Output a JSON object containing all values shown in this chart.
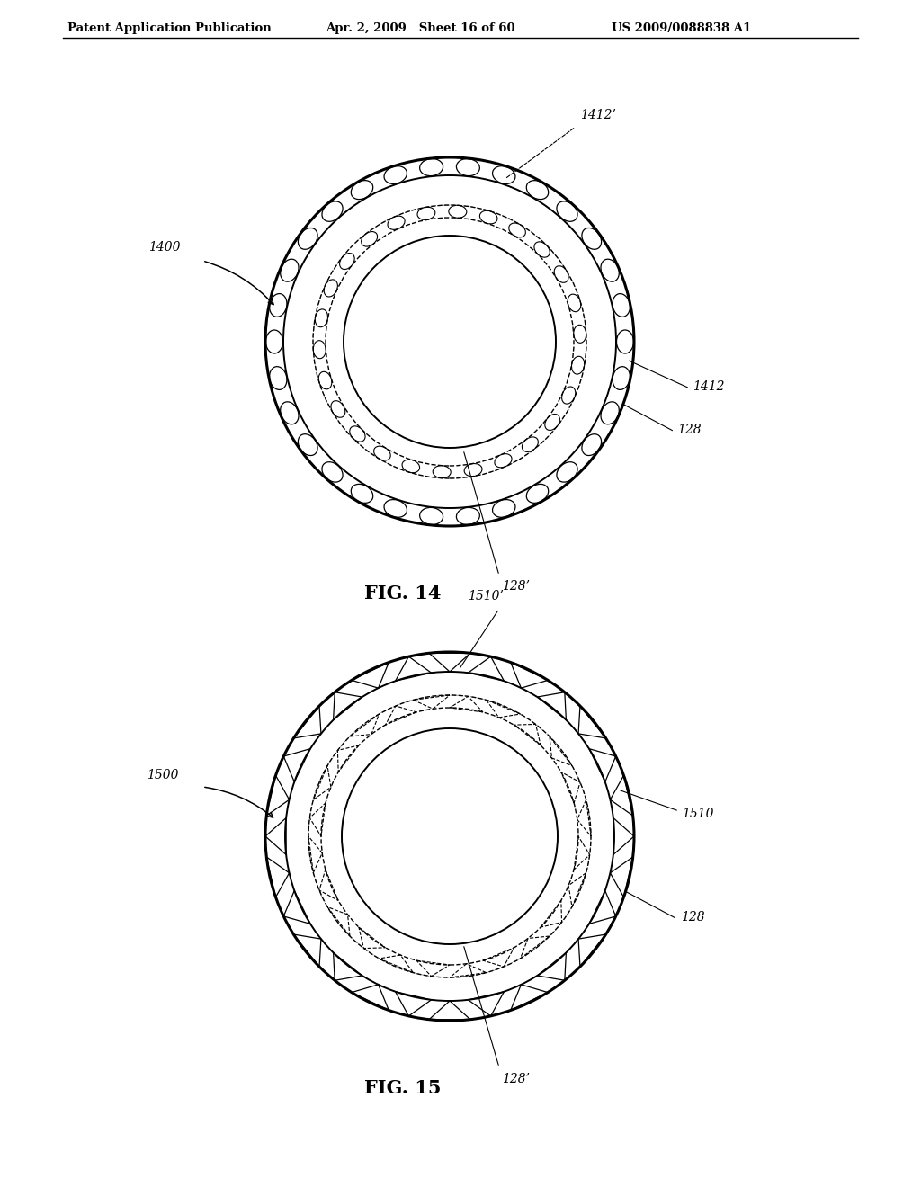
{
  "header_left": "Patent Application Publication",
  "header_mid": "Apr. 2, 2009   Sheet 16 of 60",
  "header_right": "US 2009/0088838 A1",
  "fig14_label": "FIG. 14",
  "fig15_label": "FIG. 15",
  "fig14_ref1400": "1400",
  "fig14_ref1412": "1412",
  "fig14_ref1412p": "1412’",
  "fig14_ref128": "128",
  "fig14_ref128p": "128’",
  "fig15_ref1500": "1500",
  "fig15_ref1510": "1510",
  "fig15_ref1510p": "1510’",
  "fig15_ref128": "128",
  "fig15_ref128p": "128’",
  "bg_color": "#ffffff",
  "line_color": "#000000"
}
